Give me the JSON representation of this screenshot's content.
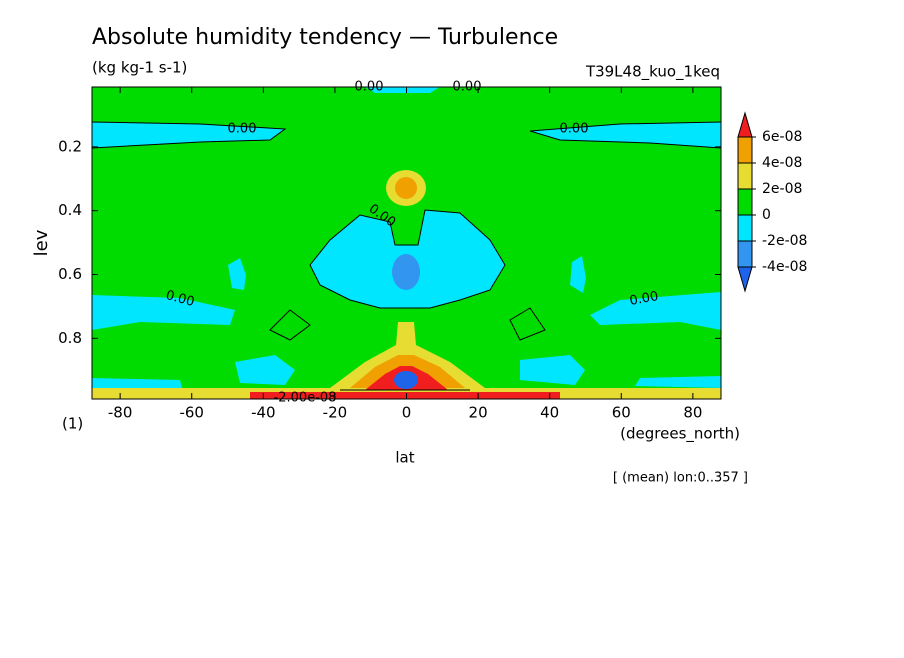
{
  "chart_data": {
    "type": "contour",
    "title": "Absolute humidity tendency — Turbulence",
    "subtitle": "(kg kg-1 s-1)",
    "run_label": "T39L48_kuo_1keq",
    "xlabel": "lat",
    "x_units": "(degrees_north)",
    "ylabel": "lev",
    "y_units": "(1)",
    "note": "[ (mean) lon:0..357 ]",
    "xlim": [
      -87.86,
      87.86
    ],
    "xticks": [
      -80,
      -60,
      -40,
      -20,
      0,
      20,
      40,
      60,
      80
    ],
    "ylim": [
      0.0125,
      0.99
    ],
    "y_inverted": true,
    "yticks": [
      0.2,
      0.4,
      0.6,
      0.8
    ],
    "contour_labels": [
      "0.00",
      "0.00",
      "0.00",
      "0.00",
      "0.00",
      "0.00",
      "0.00",
      "-2.00e-08"
    ],
    "colorbar": {
      "levels": [
        {
          "value": -4e-08,
          "label": "-4e-08"
        },
        {
          "value": -2e-08,
          "label": "-2e-08"
        },
        0,
        {
          "value": 2e-08,
          "label": "2e-08"
        },
        {
          "value": 4e-08,
          "label": "4e-08"
        },
        {
          "value": 6e-08,
          "label": "6e-08"
        }
      ],
      "colors": [
        "#1e64eb",
        "#3296f0",
        "#00e6ff",
        "#00dc00",
        "#e6dc32",
        "#f0a000",
        "#f01e1e"
      ]
    }
  }
}
